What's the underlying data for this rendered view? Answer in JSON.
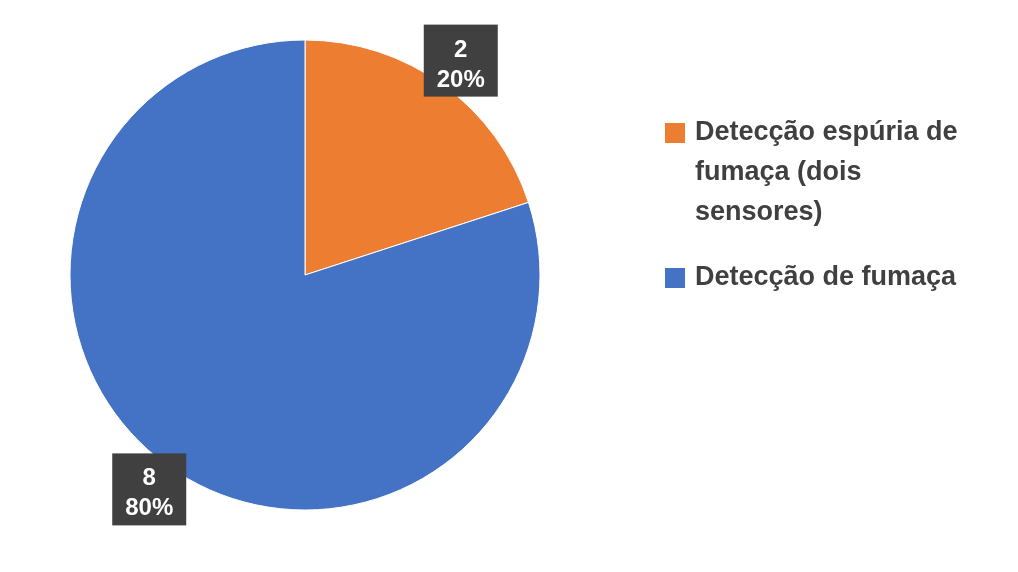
{
  "chart_data": {
    "type": "pie",
    "categories": [
      "Detecção espúria de fumaça (dois sensores)",
      "Detecção de fumaça"
    ],
    "values": [
      2,
      8
    ],
    "colors": [
      "#ed7d31",
      "#4472c4"
    ],
    "value_labels": [
      "2\n20%",
      "8\n80%"
    ],
    "legend": "right"
  }
}
